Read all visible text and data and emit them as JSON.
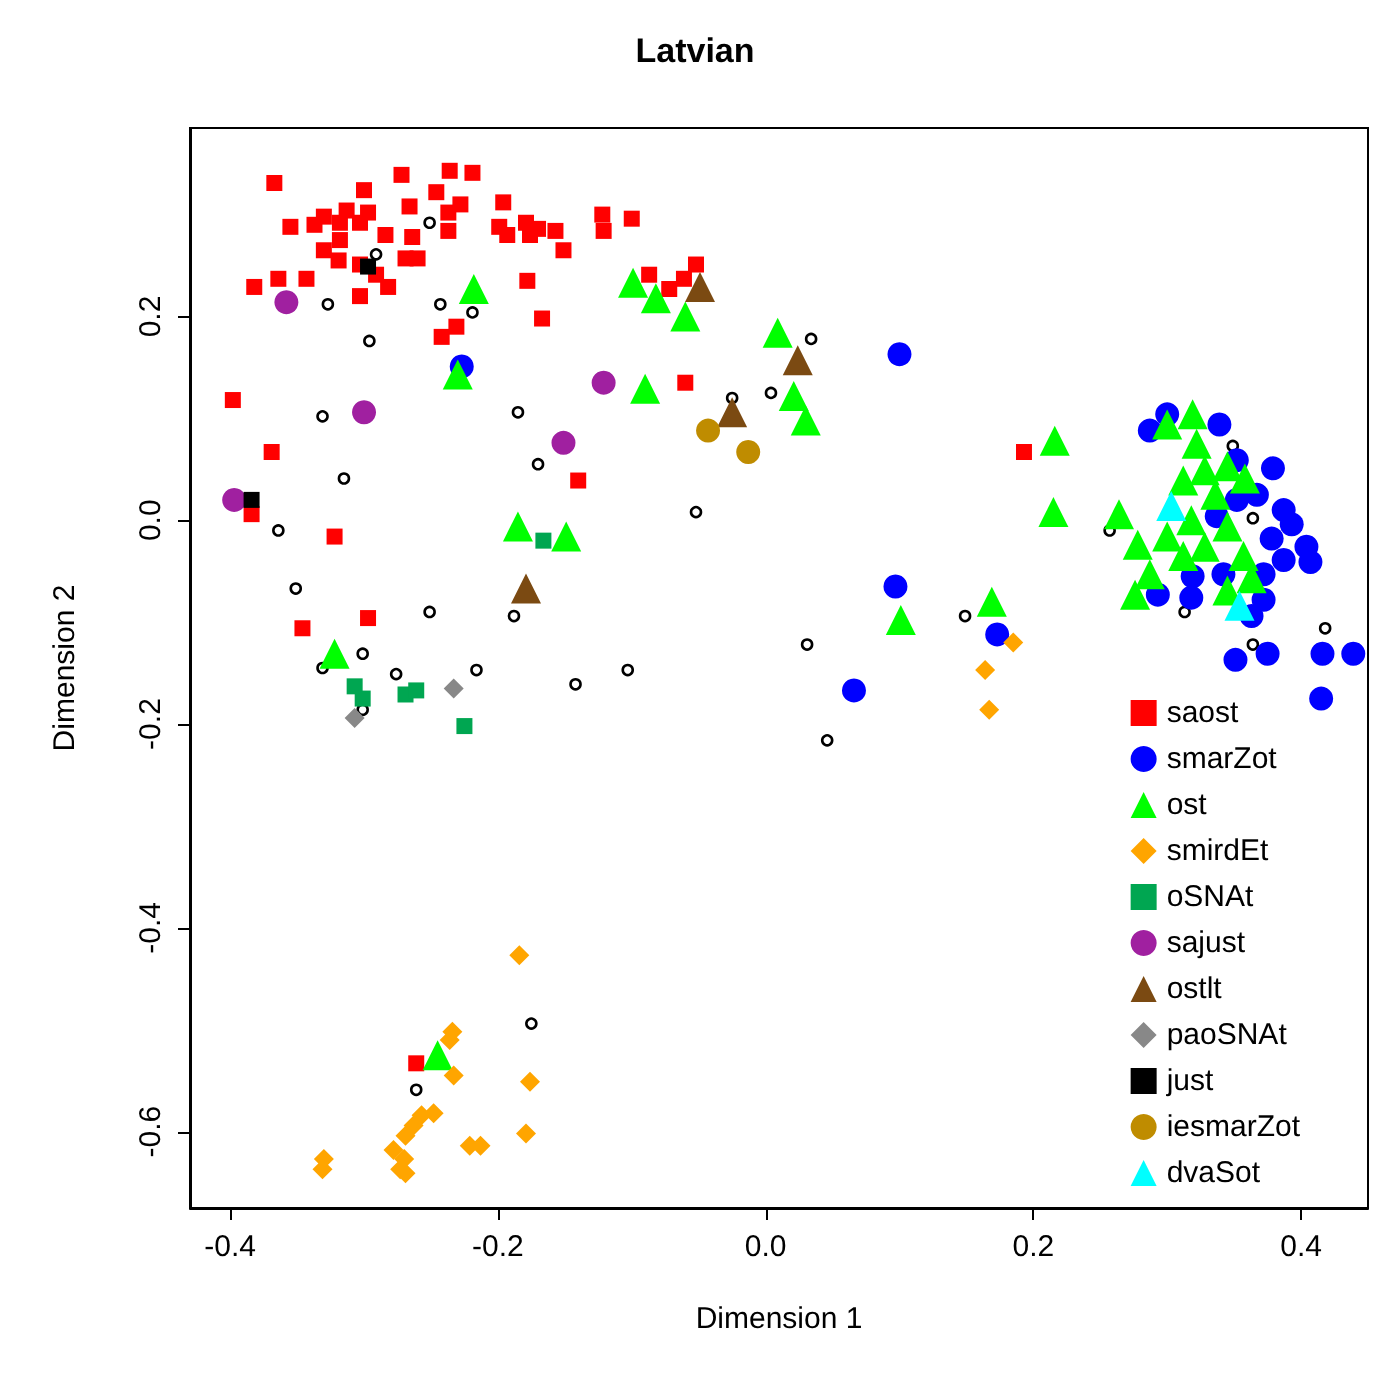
{
  "chart_data": {
    "type": "scatter",
    "title": "Latvian",
    "xlabel": "Dimension 1",
    "ylabel": "Dimension 2",
    "xlim": [
      -0.43,
      0.45
    ],
    "ylim": [
      -0.675,
      0.385
    ],
    "xticks": [
      -0.4,
      -0.2,
      {
        "value": 0,
        "label": "0.0"
      },
      0.2,
      0.4
    ],
    "yticks": [
      -0.6,
      -0.4,
      -0.2,
      {
        "value": 0,
        "label": "0.0"
      },
      0.2
    ],
    "grid": false,
    "legend": "bottom right",
    "series": [
      {
        "name": "saost",
        "color": "#ff0000",
        "marker": "square",
        "x": [
          -0.367,
          -0.272,
          -0.236,
          -0.219,
          -0.3,
          -0.246,
          -0.228,
          -0.196,
          -0.266,
          -0.313,
          -0.297,
          -0.237,
          -0.355,
          -0.337,
          -0.33,
          -0.318,
          -0.303,
          -0.199,
          -0.179,
          -0.17,
          -0.157,
          -0.122,
          -0.121,
          -0.1,
          -0.193,
          -0.176,
          -0.237,
          -0.284,
          -0.264,
          -0.318,
          -0.33,
          -0.319,
          -0.269,
          -0.26,
          -0.151,
          -0.303,
          -0.291,
          -0.282,
          -0.364,
          -0.343,
          -0.382,
          -0.303,
          -0.178,
          -0.087,
          -0.072,
          -0.061,
          -0.052,
          -0.167,
          -0.231,
          -0.242,
          -0.06,
          -0.398,
          -0.369,
          -0.14,
          -0.384,
          -0.322,
          -0.346,
          -0.297,
          0.193,
          -0.261
        ],
        "values": [
          0.331,
          0.339,
          0.343,
          0.341,
          0.324,
          0.322,
          0.31,
          0.312,
          0.308,
          0.304,
          0.302,
          0.302,
          0.288,
          0.29,
          0.298,
          0.292,
          0.292,
          0.288,
          0.292,
          0.286,
          0.284,
          0.3,
          0.284,
          0.296,
          0.28,
          0.28,
          0.284,
          0.28,
          0.278,
          0.275,
          0.265,
          0.255,
          0.257,
          0.257,
          0.265,
          0.251,
          0.241,
          0.229,
          0.237,
          0.237,
          0.229,
          0.22,
          0.235,
          0.241,
          0.227,
          0.237,
          0.251,
          0.198,
          0.19,
          0.18,
          0.135,
          0.118,
          0.067,
          0.039,
          0.006,
          -0.016,
          -0.106,
          -0.096,
          0.067,
          -0.533
        ]
      },
      {
        "name": "smarZot",
        "color": "#0000ff",
        "marker": "circle",
        "x": [
          -0.227,
          0.1,
          0.097,
          0.066,
          0.173,
          0.287,
          0.3,
          0.339,
          0.379,
          0.387,
          0.393,
          0.378,
          0.404,
          0.387,
          0.407,
          0.372,
          0.319,
          0.318,
          0.293,
          0.372,
          0.363,
          0.351,
          0.375,
          0.416,
          0.439,
          0.415,
          0.337,
          0.352,
          0.367,
          0.352,
          0.342
        ],
        "values": [
          0.151,
          0.163,
          -0.065,
          -0.167,
          -0.112,
          0.088,
          0.104,
          0.094,
          0.051,
          0.01,
          -0.004,
          -0.018,
          -0.026,
          -0.039,
          -0.041,
          -0.053,
          -0.055,
          -0.076,
          -0.073,
          -0.078,
          -0.094,
          -0.137,
          -0.131,
          -0.131,
          -0.131,
          -0.175,
          0.004,
          0.02,
          0.025,
          0.059,
          -0.053
        ]
      },
      {
        "name": "ost",
        "color": "#00ff00",
        "marker": "triangle",
        "x": [
          -0.218,
          -0.23,
          -0.099,
          -0.082,
          -0.06,
          -0.09,
          0.009,
          0.021,
          0.03,
          0.216,
          0.215,
          0.264,
          0.278,
          0.287,
          0.276,
          0.3,
          0.319,
          0.322,
          0.312,
          0.328,
          0.345,
          0.358,
          0.336,
          0.318,
          0.345,
          0.3,
          0.328,
          0.312,
          0.357,
          0.363,
          0.345,
          0.169,
          0.101,
          -0.185,
          -0.149,
          -0.322,
          -0.245
        ],
        "values": [
          0.227,
          0.143,
          0.233,
          0.218,
          0.2,
          0.129,
          0.184,
          0.122,
          0.098,
          0.078,
          0.008,
          0.006,
          -0.024,
          -0.053,
          -0.073,
          0.094,
          0.104,
          0.075,
          0.039,
          0.049,
          0.053,
          0.041,
          0.025,
          0,
          -0.006,
          -0.016,
          -0.026,
          -0.035,
          -0.035,
          -0.057,
          -0.069,
          -0.08,
          -0.098,
          -0.006,
          -0.016,
          -0.131,
          -0.525
        ]
      },
      {
        "name": "smirdEt",
        "color": "#ffa500",
        "marker": "diamond",
        "x": [
          0.185,
          0.164,
          0.167,
          -0.184,
          -0.234,
          -0.236,
          -0.233,
          -0.176,
          -0.179,
          -0.248,
          -0.257,
          -0.263,
          -0.269,
          -0.278,
          -0.27,
          -0.273,
          -0.269,
          -0.221,
          -0.213,
          -0.33,
          -0.331
        ],
        "values": [
          -0.12,
          -0.147,
          -0.186,
          -0.427,
          -0.502,
          -0.51,
          -0.545,
          -0.551,
          -0.602,
          -0.582,
          -0.584,
          -0.594,
          -0.604,
          -0.618,
          -0.627,
          -0.637,
          -0.641,
          -0.614,
          -0.614,
          -0.627,
          -0.637
        ]
      },
      {
        "name": "oSNAt",
        "color": "#00a651",
        "marker": "square",
        "x": [
          -0.166,
          -0.307,
          -0.301,
          -0.269,
          -0.261,
          -0.225
        ],
        "values": [
          -0.02,
          -0.163,
          -0.175,
          -0.171,
          -0.167,
          -0.202
        ]
      },
      {
        "name": "sajust",
        "color": "#a020a0",
        "marker": "circle",
        "x": [
          -0.358,
          -0.3,
          -0.121,
          -0.151,
          -0.397
        ],
        "values": [
          0.214,
          0.106,
          0.135,
          0.076,
          0.02
        ]
      },
      {
        "name": "ostlt",
        "color": "#7b4a12",
        "marker": "triangle",
        "x": [
          -0.049,
          -0.025,
          -0.179,
          0.024
        ],
        "values": [
          0.229,
          0.106,
          -0.067,
          0.157
        ]
      },
      {
        "name": "paoSNAt",
        "color": "#888888",
        "marker": "diamond",
        "x": [
          -0.233,
          -0.307
        ],
        "values": [
          -0.165,
          -0.194
        ]
      },
      {
        "name": "just",
        "color": "#000000",
        "marker": "square",
        "x": [
          -0.297,
          -0.384
        ],
        "values": [
          0.249,
          0.02
        ]
      },
      {
        "name": "iesmarZot",
        "color": "#bf8c00",
        "marker": "circle",
        "x": [
          -0.043,
          -0.013
        ],
        "values": [
          0.088,
          0.067
        ]
      },
      {
        "name": "dvaSot",
        "color": "#00ffff",
        "marker": "triangle",
        "x": [
          0.303,
          0.354
        ],
        "values": [
          0.014,
          -0.084
        ]
      },
      {
        "color": "#000000",
        "marker": "circle",
        "x": [
          -0.251,
          -0.291,
          -0.327,
          -0.243,
          -0.219,
          -0.296,
          -0.331,
          -0.185,
          -0.17,
          -0.315,
          -0.025,
          0.004,
          -0.052,
          -0.364,
          -0.351,
          0.034,
          0.257,
          0.149,
          0.031,
          0.046,
          0.349,
          0.364,
          0.313,
          0.418,
          0.364,
          -0.251,
          -0.188,
          -0.301,
          -0.331,
          -0.276,
          -0.216,
          -0.142,
          -0.103,
          -0.301,
          -0.175,
          -0.261
        ],
        "values": [
          0.292,
          0.261,
          0.212,
          0.212,
          0.204,
          0.176,
          0.102,
          0.106,
          0.055,
          0.041,
          0.12,
          0.125,
          0.008,
          -0.01,
          -0.067,
          0.178,
          -0.01,
          -0.094,
          -0.122,
          -0.216,
          0.073,
          0.002,
          -0.09,
          -0.106,
          -0.122,
          -0.09,
          -0.094,
          -0.131,
          -0.145,
          -0.151,
          -0.147,
          -0.161,
          -0.147,
          -0.186,
          -0.494,
          -0.559
        ]
      }
    ]
  }
}
